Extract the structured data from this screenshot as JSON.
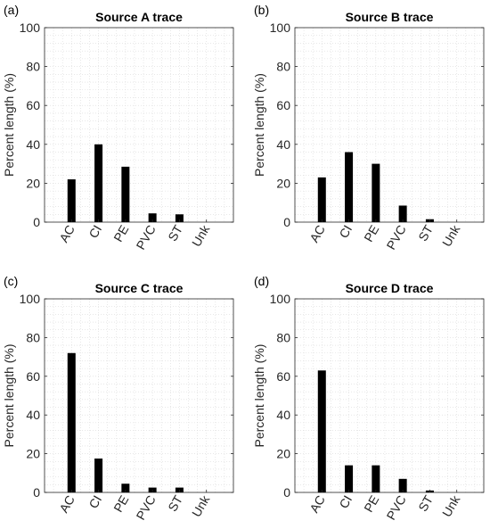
{
  "chart_data": [
    {
      "type": "bar",
      "panel_label": "(a)",
      "title": "Source A trace",
      "ylabel": "Percent length (%)",
      "xlabel": "",
      "categories": [
        "AC",
        "CI",
        "PE",
        "PVC",
        "ST",
        "Unk"
      ],
      "values": [
        22,
        40,
        28.5,
        4.5,
        4,
        0
      ],
      "ylim": [
        0,
        100
      ],
      "yticks": [
        0,
        20,
        40,
        60,
        80,
        100
      ],
      "grid": true,
      "bar_color": "#000000"
    },
    {
      "type": "bar",
      "panel_label": "(b)",
      "title": "Source B trace",
      "ylabel": "Percent length (%)",
      "xlabel": "",
      "categories": [
        "AC",
        "CI",
        "PE",
        "PVC",
        "ST",
        "Unk"
      ],
      "values": [
        23,
        36,
        30,
        8.5,
        1.5,
        0
      ],
      "ylim": [
        0,
        100
      ],
      "yticks": [
        0,
        20,
        40,
        60,
        80,
        100
      ],
      "grid": true,
      "bar_color": "#000000"
    },
    {
      "type": "bar",
      "panel_label": "(c)",
      "title": "Source C trace",
      "ylabel": "Percent length (%)",
      "xlabel": "",
      "categories": [
        "AC",
        "CI",
        "PE",
        "PVC",
        "ST",
        "Unk"
      ],
      "values": [
        72,
        17.5,
        4.5,
        2.5,
        2.5,
        0
      ],
      "ylim": [
        0,
        100
      ],
      "yticks": [
        0,
        20,
        40,
        60,
        80,
        100
      ],
      "grid": true,
      "bar_color": "#000000"
    },
    {
      "type": "bar",
      "panel_label": "(d)",
      "title": "Source D trace",
      "ylabel": "Percent length (%)",
      "xlabel": "",
      "categories": [
        "AC",
        "CI",
        "PE",
        "PVC",
        "ST",
        "Unk"
      ],
      "values": [
        63,
        14,
        14,
        7,
        1,
        0
      ],
      "ylim": [
        0,
        100
      ],
      "yticks": [
        0,
        20,
        40,
        60,
        80,
        100
      ],
      "grid": true,
      "bar_color": "#000000"
    }
  ]
}
